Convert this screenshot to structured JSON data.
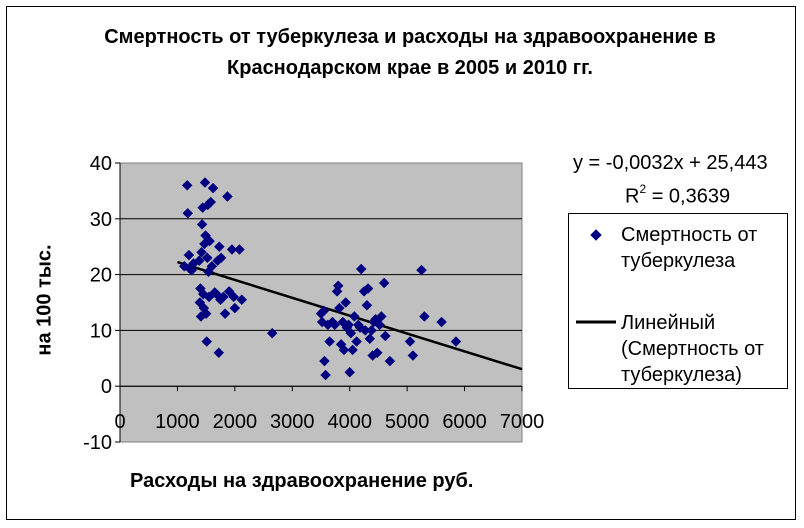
{
  "chart_data": {
    "type": "scatter",
    "title": "Смертность от туберкулеза и расходы на здравоохранение в Краснодарском крае в 2005 и 2010 гг.",
    "xlabel": "Расходы на здравоохранение руб.",
    "ylabel": "на 100 тыс.",
    "xlim": [
      0,
      7000
    ],
    "ylim": [
      -10,
      40
    ],
    "x_ticks": [
      "0",
      "1000",
      "2000",
      "3000",
      "4000",
      "5000",
      "6000",
      "7000"
    ],
    "y_ticks": [
      "40",
      "30",
      "20",
      "10",
      "0",
      "-10"
    ],
    "grid": "horizontal",
    "legend_position": "right",
    "series": [
      {
        "name": "Смертность от туберкулеза",
        "marker": "diamond",
        "color": "#000080",
        "points": [
          [
            1120,
            21.5
          ],
          [
            1170,
            36.0
          ],
          [
            1180,
            31.0
          ],
          [
            1200,
            23.5
          ],
          [
            1220,
            21.0
          ],
          [
            1250,
            20.8
          ],
          [
            1280,
            22.0
          ],
          [
            1380,
            22.5
          ],
          [
            1390,
            15.0
          ],
          [
            1400,
            17.5
          ],
          [
            1410,
            12.5
          ],
          [
            1420,
            24.0
          ],
          [
            1430,
            29.0
          ],
          [
            1440,
            32.0
          ],
          [
            1450,
            16.5
          ],
          [
            1460,
            14.0
          ],
          [
            1470,
            25.5
          ],
          [
            1480,
            36.5
          ],
          [
            1490,
            27.0
          ],
          [
            1500,
            13.0
          ],
          [
            1510,
            8.0
          ],
          [
            1520,
            23.0
          ],
          [
            1530,
            32.5
          ],
          [
            1540,
            20.5
          ],
          [
            1550,
            16.0
          ],
          [
            1560,
            26.0
          ],
          [
            1580,
            33.0
          ],
          [
            1600,
            21.5
          ],
          [
            1620,
            35.5
          ],
          [
            1650,
            16.8
          ],
          [
            1680,
            16.5
          ],
          [
            1700,
            22.5
          ],
          [
            1720,
            6.0
          ],
          [
            1730,
            25.0
          ],
          [
            1750,
            15.5
          ],
          [
            1760,
            23.0
          ],
          [
            1800,
            16.0
          ],
          [
            1830,
            13.0
          ],
          [
            1870,
            34.0
          ],
          [
            1900,
            17.0
          ],
          [
            1950,
            24.5
          ],
          [
            1980,
            16.0
          ],
          [
            2000,
            14.0
          ],
          [
            2080,
            24.5
          ],
          [
            2120,
            15.5
          ],
          [
            2650,
            9.5
          ],
          [
            3500,
            13.0
          ],
          [
            3520,
            11.5
          ],
          [
            3550,
            13.5
          ],
          [
            3560,
            4.5
          ],
          [
            3580,
            2.0
          ],
          [
            3620,
            11.0
          ],
          [
            3650,
            8.0
          ],
          [
            3700,
            11.5
          ],
          [
            3740,
            11.0
          ],
          [
            3780,
            17.0
          ],
          [
            3800,
            18.0
          ],
          [
            3820,
            14.0
          ],
          [
            3850,
            7.5
          ],
          [
            3880,
            11.5
          ],
          [
            3900,
            6.5
          ],
          [
            3930,
            15.0
          ],
          [
            3950,
            10.5
          ],
          [
            3980,
            11.0
          ],
          [
            4000,
            2.5
          ],
          [
            4020,
            9.5
          ],
          [
            4050,
            6.5
          ],
          [
            4080,
            12.5
          ],
          [
            4120,
            8.0
          ],
          [
            4150,
            11.0
          ],
          [
            4180,
            10.5
          ],
          [
            4200,
            21.0
          ],
          [
            4250,
            17.0
          ],
          [
            4270,
            10.0
          ],
          [
            4300,
            14.5
          ],
          [
            4320,
            17.5
          ],
          [
            4350,
            8.5
          ],
          [
            4380,
            10.0
          ],
          [
            4400,
            5.5
          ],
          [
            4420,
            11.5
          ],
          [
            4450,
            12.0
          ],
          [
            4480,
            6.0
          ],
          [
            4520,
            11.0
          ],
          [
            4550,
            12.5
          ],
          [
            4600,
            18.5
          ],
          [
            4620,
            9.0
          ],
          [
            4700,
            4.5
          ],
          [
            5050,
            8.0
          ],
          [
            5100,
            5.5
          ],
          [
            5250,
            20.8
          ],
          [
            5300,
            12.5
          ],
          [
            5600,
            11.5
          ],
          [
            5850,
            8.0
          ]
        ]
      },
      {
        "name": "Линейный (Смертность от туберкулеза)",
        "type": "line",
        "color": "#000000",
        "x": [
          1000,
          7000
        ],
        "y": [
          22.243,
          3.043
        ]
      }
    ],
    "annotations": [
      "y = -0,0032x + 25,443",
      "R2 = 0,3639"
    ]
  },
  "trendline_text": {
    "equation": "y = -0,0032x + 25,443",
    "r2_prefix": "R",
    "r2_sup": "2",
    "r2_value": " = 0,3639"
  },
  "legend": {
    "series_label": "Смертность от туберкулеза",
    "trend_label": "Линейный (Смертность от туберкулеза)"
  }
}
